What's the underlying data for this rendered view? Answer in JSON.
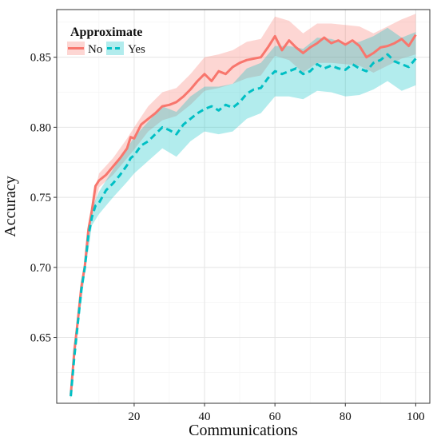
{
  "chart_data": {
    "type": "line",
    "title": "",
    "xlabel": "Communications",
    "ylabel": "Accuracy",
    "xlim": [
      -2,
      104
    ],
    "ylim": [
      0.603,
      0.884
    ],
    "xticks": [
      20,
      40,
      60,
      80,
      100
    ],
    "yticks": [
      0.65,
      0.7,
      0.75,
      0.8,
      0.85
    ],
    "xtick_labels": [
      "20",
      "40",
      "60",
      "80",
      "100"
    ],
    "ytick_labels": [
      "0.65",
      "0.70",
      "0.75",
      "0.80",
      "0.85"
    ],
    "grid": true,
    "legend": {
      "title": "Approximate",
      "placement": "top-left",
      "entries": [
        "No",
        "Yes"
      ]
    },
    "series": [
      {
        "name": "No",
        "color": "#f8766d",
        "style": "solid",
        "points": [
          [
            2,
            0.609
          ],
          [
            3,
            0.64
          ],
          [
            4,
            0.662
          ],
          [
            5,
            0.686
          ],
          [
            6,
            0.701
          ],
          [
            7,
            0.727
          ],
          [
            8,
            0.741
          ],
          [
            9,
            0.758
          ],
          [
            10,
            0.762
          ],
          [
            12,
            0.766
          ],
          [
            14,
            0.772
          ],
          [
            16,
            0.778
          ],
          [
            18,
            0.785
          ],
          [
            19,
            0.793
          ],
          [
            20,
            0.792
          ],
          [
            22,
            0.802
          ],
          [
            24,
            0.806
          ],
          [
            26,
            0.81
          ],
          [
            28,
            0.815
          ],
          [
            30,
            0.816
          ],
          [
            32,
            0.818
          ],
          [
            34,
            0.822
          ],
          [
            36,
            0.827
          ],
          [
            38,
            0.833
          ],
          [
            40,
            0.838
          ],
          [
            42,
            0.833
          ],
          [
            44,
            0.84
          ],
          [
            46,
            0.838
          ],
          [
            48,
            0.843
          ],
          [
            50,
            0.846
          ],
          [
            52,
            0.848
          ],
          [
            54,
            0.849
          ],
          [
            56,
            0.85
          ],
          [
            58,
            0.857
          ],
          [
            60,
            0.865
          ],
          [
            62,
            0.855
          ],
          [
            64,
            0.862
          ],
          [
            66,
            0.857
          ],
          [
            68,
            0.853
          ],
          [
            70,
            0.857
          ],
          [
            72,
            0.86
          ],
          [
            74,
            0.864
          ],
          [
            76,
            0.86
          ],
          [
            78,
            0.862
          ],
          [
            80,
            0.859
          ],
          [
            82,
            0.862
          ],
          [
            84,
            0.858
          ],
          [
            86,
            0.85
          ],
          [
            88,
            0.853
          ],
          [
            90,
            0.857
          ],
          [
            92,
            0.858
          ],
          [
            94,
            0.86
          ],
          [
            96,
            0.863
          ],
          [
            98,
            0.858
          ],
          [
            100,
            0.866
          ]
        ],
        "band": [
          [
            2,
            0.606,
            0.612
          ],
          [
            4,
            0.658,
            0.666
          ],
          [
            6,
            0.697,
            0.705
          ],
          [
            8,
            0.737,
            0.745
          ],
          [
            10,
            0.757,
            0.767
          ],
          [
            14,
            0.766,
            0.778
          ],
          [
            18,
            0.778,
            0.792
          ],
          [
            20,
            0.784,
            0.8
          ],
          [
            24,
            0.797,
            0.815
          ],
          [
            28,
            0.805,
            0.825
          ],
          [
            32,
            0.808,
            0.828
          ],
          [
            36,
            0.816,
            0.838
          ],
          [
            40,
            0.826,
            0.85
          ],
          [
            44,
            0.828,
            0.852
          ],
          [
            48,
            0.831,
            0.855
          ],
          [
            52,
            0.835,
            0.861
          ],
          [
            56,
            0.837,
            0.863
          ],
          [
            60,
            0.851,
            0.879
          ],
          [
            64,
            0.848,
            0.876
          ],
          [
            68,
            0.839,
            0.867
          ],
          [
            72,
            0.846,
            0.874
          ],
          [
            76,
            0.846,
            0.874
          ],
          [
            80,
            0.845,
            0.873
          ],
          [
            84,
            0.844,
            0.872
          ],
          [
            88,
            0.839,
            0.867
          ],
          [
            92,
            0.844,
            0.872
          ],
          [
            96,
            0.849,
            0.877
          ],
          [
            100,
            0.852,
            0.881
          ]
        ]
      },
      {
        "name": "Yes",
        "color": "#00bfc4",
        "style": "dashed",
        "points": [
          [
            2,
            0.608
          ],
          [
            3,
            0.636
          ],
          [
            4,
            0.66
          ],
          [
            5,
            0.684
          ],
          [
            6,
            0.7
          ],
          [
            7,
            0.723
          ],
          [
            8,
            0.736
          ],
          [
            9,
            0.744
          ],
          [
            10,
            0.746
          ],
          [
            12,
            0.755
          ],
          [
            14,
            0.76
          ],
          [
            16,
            0.766
          ],
          [
            18,
            0.773
          ],
          [
            19,
            0.778
          ],
          [
            20,
            0.78
          ],
          [
            22,
            0.787
          ],
          [
            24,
            0.79
          ],
          [
            26,
            0.795
          ],
          [
            28,
            0.8
          ],
          [
            30,
            0.798
          ],
          [
            32,
            0.795
          ],
          [
            34,
            0.802
          ],
          [
            36,
            0.806
          ],
          [
            38,
            0.81
          ],
          [
            40,
            0.813
          ],
          [
            42,
            0.815
          ],
          [
            44,
            0.812
          ],
          [
            46,
            0.816
          ],
          [
            48,
            0.814
          ],
          [
            50,
            0.818
          ],
          [
            52,
            0.824
          ],
          [
            54,
            0.827
          ],
          [
            56,
            0.828
          ],
          [
            58,
            0.835
          ],
          [
            60,
            0.84
          ],
          [
            62,
            0.838
          ],
          [
            64,
            0.84
          ],
          [
            66,
            0.842
          ],
          [
            68,
            0.838
          ],
          [
            70,
            0.84
          ],
          [
            72,
            0.845
          ],
          [
            74,
            0.842
          ],
          [
            76,
            0.844
          ],
          [
            78,
            0.842
          ],
          [
            80,
            0.841
          ],
          [
            82,
            0.845
          ],
          [
            84,
            0.842
          ],
          [
            86,
            0.84
          ],
          [
            88,
            0.846
          ],
          [
            90,
            0.848
          ],
          [
            92,
            0.852
          ],
          [
            94,
            0.847
          ],
          [
            96,
            0.845
          ],
          [
            98,
            0.843
          ],
          [
            100,
            0.849
          ]
        ],
        "band": [
          [
            2,
            0.605,
            0.611
          ],
          [
            4,
            0.655,
            0.665
          ],
          [
            6,
            0.695,
            0.705
          ],
          [
            8,
            0.73,
            0.742
          ],
          [
            10,
            0.738,
            0.754
          ],
          [
            14,
            0.75,
            0.77
          ],
          [
            18,
            0.761,
            0.785
          ],
          [
            20,
            0.767,
            0.793
          ],
          [
            24,
            0.776,
            0.804
          ],
          [
            28,
            0.785,
            0.815
          ],
          [
            32,
            0.779,
            0.811
          ],
          [
            36,
            0.79,
            0.822
          ],
          [
            40,
            0.797,
            0.829
          ],
          [
            44,
            0.795,
            0.829
          ],
          [
            48,
            0.797,
            0.831
          ],
          [
            52,
            0.806,
            0.842
          ],
          [
            56,
            0.81,
            0.846
          ],
          [
            60,
            0.822,
            0.858
          ],
          [
            64,
            0.822,
            0.858
          ],
          [
            68,
            0.82,
            0.856
          ],
          [
            72,
            0.826,
            0.864
          ],
          [
            76,
            0.825,
            0.863
          ],
          [
            80,
            0.822,
            0.86
          ],
          [
            84,
            0.823,
            0.861
          ],
          [
            88,
            0.827,
            0.865
          ],
          [
            92,
            0.833,
            0.871
          ],
          [
            96,
            0.826,
            0.864
          ],
          [
            100,
            0.83,
            0.868
          ]
        ]
      }
    ]
  }
}
